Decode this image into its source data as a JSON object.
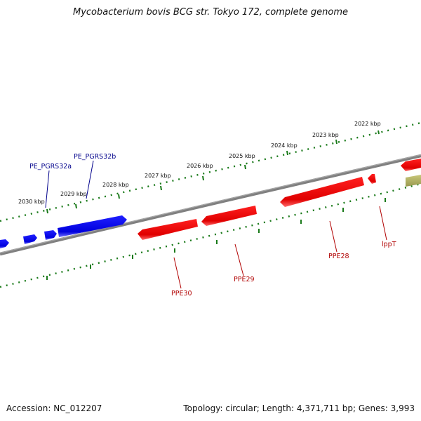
{
  "title": "Mycobacterium bovis BCG str. Tokyo 172, complete genome",
  "footer": {
    "accession": "Accession: NC_012207",
    "summary": "Topology: circular; Length: 4,371,711 bp; Genes: 3,993"
  },
  "colors": {
    "backbone": "#808080",
    "forward_gene": "#0000ff",
    "reverse_gene": "#ff0000",
    "other_gene": "#b5b46a",
    "tick": "#1a7a1a",
    "forward_label": "#00008b",
    "reverse_label": "#b00000"
  },
  "scale_labels": [
    "2022 kbp",
    "2023 kbp",
    "2024 kbp",
    "2025 kbp",
    "2026 kbp",
    "2027 kbp",
    "2028 kbp",
    "2029 kbp",
    "2030 kbp"
  ],
  "forward_genes": [
    {
      "name": "PE_PGRS32a"
    },
    {
      "name": "PE_PGRS32b"
    }
  ],
  "reverse_genes": [
    {
      "name": "PPE30"
    },
    {
      "name": "PPE29"
    },
    {
      "name": "PPE28"
    },
    {
      "name": "lppT"
    }
  ]
}
